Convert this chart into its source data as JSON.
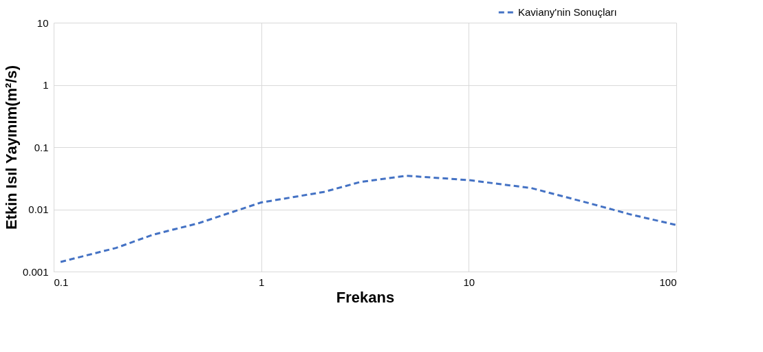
{
  "chart_data": {
    "type": "line",
    "xlabel": "Frekans",
    "ylabel": "Etkin Isıl Yayınım(m²/s)",
    "log": "xy",
    "grid": true,
    "legend": "top right",
    "line_style": "dashed",
    "marker": "none",
    "xlim": [
      0.1,
      100
    ],
    "xticks": [
      0.1,
      1,
      10,
      100
    ],
    "ylim": [
      0.001,
      10
    ],
    "yticks": [
      0.001,
      0.01,
      0.1,
      1,
      10
    ],
    "x": [
      0.108,
      0.2,
      0.3,
      0.5,
      1,
      2,
      3,
      5,
      10,
      20,
      40,
      60,
      100
    ],
    "series": [
      {
        "name": "Kaviany'nin Sonuçları",
        "color": "#4472c4",
        "values": [
          0.00143,
          0.0024,
          0.0039,
          0.006,
          0.0129,
          0.019,
          0.0275,
          0.0347,
          0.0295,
          0.022,
          0.012,
          0.0083,
          0.0056
        ]
      }
    ]
  }
}
